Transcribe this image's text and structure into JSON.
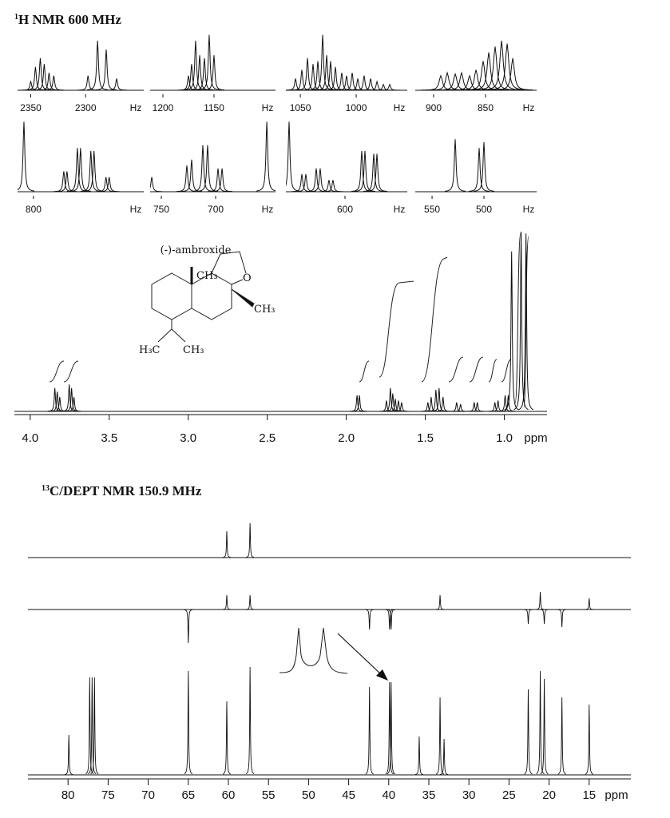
{
  "h_nmr": {
    "title_superscript": "1",
    "title": "H NMR 600 MHz",
    "insets": [
      {
        "xlim": [
          2362,
          2247
        ],
        "xticks": [
          2350,
          2300
        ],
        "unit": "Hz",
        "x": [
          2350,
          2345.7,
          2341.3,
          2337.7,
          2333.3,
          2329,
          2297.8,
          2289.1,
          2281.2,
          2271.7
        ],
        "values": [
          15,
          40,
          55,
          45,
          30,
          25,
          25,
          85,
          70,
          20
        ]
      },
      {
        "xlim": [
          1212.5,
          1089.8
        ],
        "xticks": [
          1200,
          1150
        ],
        "unit": "Hz",
        "x": [
          1175,
          1171.9,
          1168,
          1164,
          1159.4,
          1154.7,
          1150
        ],
        "values": [
          25,
          45,
          85,
          60,
          55,
          95,
          60
        ]
      },
      {
        "xlim": [
          1062.9,
          954.3
        ],
        "xticks": [
          1050,
          1000
        ],
        "unit": "Hz",
        "x": [
          1054.3,
          1048.6,
          1043.6,
          1038.6,
          1034.3,
          1030,
          1026.4,
          1022.9,
          1018.6,
          1012.9,
          1008.6,
          1003.6,
          998.6,
          992.9,
          987.1,
          981.4,
          975.7,
          970
        ],
        "values": [
          20,
          35,
          55,
          45,
          50,
          95,
          60,
          50,
          40,
          30,
          25,
          30,
          20,
          25,
          20,
          15,
          10,
          10
        ]
      },
      {
        "xlim": [
          917.7,
          800.8
        ],
        "xticks": [
          900,
          850
        ],
        "unit": "Hz",
        "x": [
          893.1,
          886.9,
          879.2,
          873.1,
          865.4,
          859.2,
          852.3,
          846.9,
          840.8,
          834.6,
          829.2,
          823.8
        ],
        "values": [
          25,
          30,
          28,
          30,
          25,
          35,
          50,
          65,
          75,
          85,
          80,
          55
        ]
      },
      {
        "xlim": [
          815,
          696
        ],
        "xticks": [
          800
        ],
        "unit": "Hz",
        "x": [
          809,
          771.4,
          768.4,
          758.6,
          755.6,
          745.9,
          742.9,
          731.6,
          728.6
        ],
        "values": [
          120,
          35,
          35,
          75,
          75,
          70,
          70,
          25,
          25
        ]
      },
      {
        "xlim": [
          760.3,
          644.9
        ],
        "xticks": [
          750,
          700
        ],
        "unit": "Hz",
        "x": [
          758.8,
          726.5,
          722.1,
          711.8,
          707.4,
          697.8,
          694.1,
          652.9
        ],
        "values": [
          25,
          45,
          55,
          80,
          80,
          40,
          40,
          120
        ]
      },
      {
        "xlim": [
          653.6,
          543.5
        ],
        "xticks": [
          600
        ],
        "unit": "Hz",
        "x": [
          650.7,
          639.1,
          635.5,
          626.1,
          622.5,
          614.5,
          610.9,
          584.8,
          581.9,
          573.9,
          571
        ],
        "values": [
          120,
          30,
          30,
          40,
          40,
          20,
          20,
          70,
          70,
          65,
          65
        ]
      },
      {
        "xlim": [
          566.2,
          449.2
        ],
        "xticks": [
          550,
          500
        ],
        "unit": "Hz",
        "x": [
          527.7,
          504.6,
          500
        ],
        "values": [
          90,
          75,
          85
        ]
      }
    ],
    "spectrum": {
      "type": "spectrum",
      "xlim": [
        4.1,
        0.73
      ],
      "xticks": [
        {
          "value": 4,
          "label": "4.0"
        },
        3.5,
        {
          "value": 3,
          "label": "3.0"
        },
        2.5,
        {
          "value": 2,
          "label": "2.0"
        },
        1.5,
        {
          "value": 1,
          "label": "1.0"
        }
      ],
      "unit": "ppm",
      "x": [
        3.844,
        3.829,
        3.813,
        3.753,
        3.738,
        3.723,
        1.932,
        1.917,
        1.746,
        1.721,
        1.706,
        1.69,
        1.67,
        1.65,
        1.484,
        1.463,
        1.433,
        1.413,
        1.388,
        1.302,
        1.277,
        1.191,
        1.171,
        1.06,
        1.04,
        0.995,
        0.975,
        0.954,
        0.894,
        0.863
      ],
      "values": [
        13,
        11,
        8,
        15,
        13,
        8,
        9,
        9,
        6,
        13,
        10,
        7,
        6,
        5,
        5,
        8,
        12,
        13,
        8,
        5,
        4,
        5,
        5,
        5,
        6,
        9,
        9,
        89,
        100,
        99
      ]
    }
  },
  "structure": {
    "name": "(-)-ambroxide",
    "labels": [
      "CH₃",
      "O",
      "CH₃",
      "H₃C",
      "CH₃"
    ]
  },
  "c_nmr": {
    "type": "spectrum",
    "title_superscript": "13",
    "title": "C/DEPT NMR 150.9 MHz",
    "xlim": [
      85.0,
      9.8
    ],
    "xticks": [
      80,
      75,
      70,
      65,
      60,
      55,
      50,
      45,
      40,
      35,
      30,
      25,
      20,
      15
    ],
    "unit": "ppm",
    "spectra": [
      {
        "x": [
          60.2,
          57.3
        ],
        "values": [
          33,
          43
        ]
      },
      {
        "x": [
          60.2,
          57.3,
          33.6,
          21.1,
          15.0,
          65.0,
          42.4,
          39.9,
          39.7,
          22.6,
          20.6,
          18.4
        ],
        "values": [
          18,
          18,
          18,
          22,
          14,
          -42,
          -25,
          -25,
          -25,
          -18,
          -18,
          -22
        ]
      },
      {
        "x": [
          79.9,
          77.3,
          77.0,
          76.7,
          65.0,
          60.2,
          57.3,
          42.4,
          39.9,
          39.7,
          36.2,
          33.6,
          33.1,
          22.6,
          21.1,
          20.6,
          18.4,
          15.0
        ],
        "values": [
          50,
          122,
          122,
          122,
          130,
          92,
          135,
          110,
          116,
          116,
          48,
          97,
          45,
          107,
          130,
          120,
          97,
          88
        ]
      }
    ]
  }
}
